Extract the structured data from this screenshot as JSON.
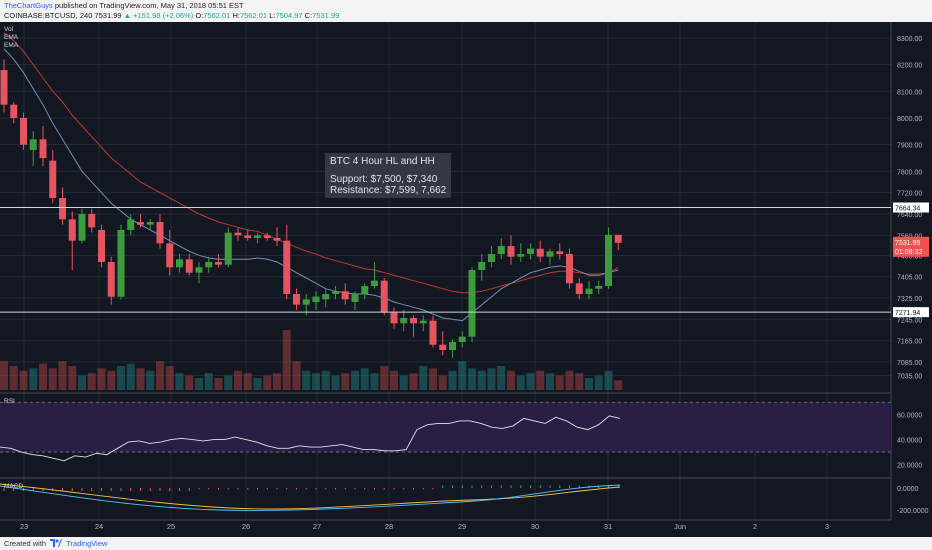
{
  "header": {
    "author": "TheChartGuys",
    "published": "published on TradingView.com, May 31, 2018 05:51 EST",
    "symbol": "COINBASE:BTCUSD, 240",
    "last": "7531.99",
    "change": "▲ +151.98 (+2.06%)",
    "open_label": "O:",
    "open": "7562.01",
    "high_label": "H:",
    "high": "7562.01",
    "low_label": "L:",
    "low": "7504.97",
    "close_label": "C:",
    "close": "7531.99"
  },
  "indicator_labels": [
    "Vol",
    "EMA",
    "EMA"
  ],
  "annotation": {
    "title": "BTC 4 Hour HL and HH",
    "support": "Support: $7,500, $7,340",
    "resistance": "Resistance: $7,599, 7,662"
  },
  "levels": [
    {
      "value": 7664.34,
      "label": "7664.34"
    },
    {
      "value": 7271.94,
      "label": "7271.94"
    }
  ],
  "price_tag": {
    "value": 7531.99,
    "label": "7531.99",
    "countdown": "01:08:32"
  },
  "price_axis": {
    "min": 6980,
    "max": 8360,
    "ticks": [
      "8300.00",
      "8200.00",
      "8100.00",
      "8000.00",
      "7900.00",
      "7800.00",
      "7720.00",
      "7640.00",
      "7560.00",
      "7485.00",
      "7405.00",
      "7325.00",
      "7245.00",
      "7165.00",
      "7085.00",
      "7035.00"
    ]
  },
  "rsi": {
    "label": "RSI",
    "ticks": [
      "60.0000",
      "40.0000",
      "20.0000"
    ],
    "band": [
      30,
      70
    ],
    "values": [
      34,
      33,
      30,
      28,
      27,
      25,
      23,
      27,
      26,
      29,
      28,
      33,
      38,
      39,
      37,
      38,
      40,
      41,
      40,
      39,
      40,
      40,
      42,
      40,
      38,
      35,
      33,
      33,
      35,
      34,
      34,
      35,
      36,
      34,
      32,
      32,
      31,
      31,
      32,
      48,
      52,
      53,
      53,
      55,
      55,
      53,
      50,
      49,
      51,
      57,
      55,
      53,
      58,
      55,
      50,
      48,
      52,
      59,
      57
    ]
  },
  "macd": {
    "label": "MACD",
    "ticks": [
      "0.0000",
      "-200.0000"
    ]
  },
  "time_axis": {
    "labels": [
      "23",
      "24",
      "25",
      "26",
      "27",
      "28",
      "29",
      "30",
      "31",
      "Jun",
      "2",
      "3"
    ]
  },
  "chart_data": {
    "type": "candlestick",
    "symbol": "COINBASE:BTCUSD",
    "interval": "240",
    "candles": [
      {
        "o": 8180,
        "h": 8220,
        "l": 8020,
        "c": 8050
      },
      {
        "o": 8050,
        "h": 8060,
        "l": 7980,
        "c": 8000
      },
      {
        "o": 8000,
        "h": 8020,
        "l": 7880,
        "c": 7900
      },
      {
        "o": 7880,
        "h": 7950,
        "l": 7820,
        "c": 7920
      },
      {
        "o": 7920,
        "h": 7970,
        "l": 7820,
        "c": 7850
      },
      {
        "o": 7840,
        "h": 7880,
        "l": 7680,
        "c": 7700
      },
      {
        "o": 7700,
        "h": 7740,
        "l": 7600,
        "c": 7620
      },
      {
        "o": 7620,
        "h": 7650,
        "l": 7430,
        "c": 7540
      },
      {
        "o": 7540,
        "h": 7660,
        "l": 7530,
        "c": 7640
      },
      {
        "o": 7640,
        "h": 7660,
        "l": 7570,
        "c": 7590
      },
      {
        "o": 7580,
        "h": 7600,
        "l": 7440,
        "c": 7460
      },
      {
        "o": 7460,
        "h": 7480,
        "l": 7300,
        "c": 7330
      },
      {
        "o": 7330,
        "h": 7600,
        "l": 7320,
        "c": 7580
      },
      {
        "o": 7580,
        "h": 7640,
        "l": 7560,
        "c": 7620
      },
      {
        "o": 7610,
        "h": 7640,
        "l": 7590,
        "c": 7600
      },
      {
        "o": 7600,
        "h": 7620,
        "l": 7580,
        "c": 7610
      },
      {
        "o": 7610,
        "h": 7640,
        "l": 7510,
        "c": 7530
      },
      {
        "o": 7530,
        "h": 7580,
        "l": 7410,
        "c": 7440
      },
      {
        "o": 7440,
        "h": 7490,
        "l": 7420,
        "c": 7470
      },
      {
        "o": 7470,
        "h": 7490,
        "l": 7410,
        "c": 7420
      },
      {
        "o": 7420,
        "h": 7460,
        "l": 7380,
        "c": 7440
      },
      {
        "o": 7440,
        "h": 7480,
        "l": 7420,
        "c": 7460
      },
      {
        "o": 7460,
        "h": 7490,
        "l": 7440,
        "c": 7450
      },
      {
        "o": 7450,
        "h": 7590,
        "l": 7440,
        "c": 7570
      },
      {
        "o": 7570,
        "h": 7590,
        "l": 7540,
        "c": 7560
      },
      {
        "o": 7560,
        "h": 7580,
        "l": 7540,
        "c": 7550
      },
      {
        "o": 7550,
        "h": 7570,
        "l": 7530,
        "c": 7560
      },
      {
        "o": 7560,
        "h": 7570,
        "l": 7540,
        "c": 7550
      },
      {
        "o": 7550,
        "h": 7590,
        "l": 7520,
        "c": 7540
      },
      {
        "o": 7540,
        "h": 7600,
        "l": 7320,
        "c": 7340
      },
      {
        "o": 7340,
        "h": 7360,
        "l": 7280,
        "c": 7300
      },
      {
        "o": 7300,
        "h": 7340,
        "l": 7260,
        "c": 7320
      },
      {
        "o": 7310,
        "h": 7350,
        "l": 7280,
        "c": 7330
      },
      {
        "o": 7320,
        "h": 7360,
        "l": 7290,
        "c": 7340
      },
      {
        "o": 7340,
        "h": 7370,
        "l": 7320,
        "c": 7350
      },
      {
        "o": 7350,
        "h": 7380,
        "l": 7300,
        "c": 7320
      },
      {
        "o": 7310,
        "h": 7350,
        "l": 7280,
        "c": 7340
      },
      {
        "o": 7340,
        "h": 7380,
        "l": 7320,
        "c": 7370
      },
      {
        "o": 7370,
        "h": 7460,
        "l": 7360,
        "c": 7390
      },
      {
        "o": 7390,
        "h": 7400,
        "l": 7260,
        "c": 7270
      },
      {
        "o": 7270,
        "h": 7290,
        "l": 7210,
        "c": 7230
      },
      {
        "o": 7230,
        "h": 7280,
        "l": 7200,
        "c": 7250
      },
      {
        "o": 7250,
        "h": 7260,
        "l": 7180,
        "c": 7230
      },
      {
        "o": 7230,
        "h": 7260,
        "l": 7200,
        "c": 7240
      },
      {
        "o": 7240,
        "h": 7260,
        "l": 7140,
        "c": 7150
      },
      {
        "o": 7150,
        "h": 7200,
        "l": 7110,
        "c": 7130
      },
      {
        "o": 7130,
        "h": 7170,
        "l": 7100,
        "c": 7160
      },
      {
        "o": 7160,
        "h": 7200,
        "l": 7140,
        "c": 7180
      },
      {
        "o": 7180,
        "h": 7440,
        "l": 7160,
        "c": 7430
      },
      {
        "o": 7430,
        "h": 7490,
        "l": 7390,
        "c": 7460
      },
      {
        "o": 7460,
        "h": 7520,
        "l": 7440,
        "c": 7490
      },
      {
        "o": 7490,
        "h": 7550,
        "l": 7470,
        "c": 7520
      },
      {
        "o": 7520,
        "h": 7560,
        "l": 7450,
        "c": 7480
      },
      {
        "o": 7480,
        "h": 7530,
        "l": 7460,
        "c": 7490
      },
      {
        "o": 7490,
        "h": 7530,
        "l": 7470,
        "c": 7510
      },
      {
        "o": 7510,
        "h": 7540,
        "l": 7460,
        "c": 7480
      },
      {
        "o": 7480,
        "h": 7510,
        "l": 7450,
        "c": 7500
      },
      {
        "o": 7500,
        "h": 7530,
        "l": 7470,
        "c": 7490
      },
      {
        "o": 7490,
        "h": 7510,
        "l": 7360,
        "c": 7380
      },
      {
        "o": 7380,
        "h": 7400,
        "l": 7320,
        "c": 7340
      },
      {
        "o": 7340,
        "h": 7390,
        "l": 7320,
        "c": 7360
      },
      {
        "o": 7360,
        "h": 7390,
        "l": 7340,
        "c": 7370
      },
      {
        "o": 7370,
        "h": 7590,
        "l": 7360,
        "c": 7562
      },
      {
        "o": 7562,
        "h": 7562,
        "l": 7505,
        "c": 7532
      }
    ],
    "volume": [
      12,
      10,
      8,
      9,
      11,
      9,
      12,
      10,
      6,
      7,
      9,
      8,
      10,
      11,
      9,
      8,
      12,
      10,
      7,
      6,
      5,
      7,
      5,
      6,
      8,
      7,
      5,
      6,
      7,
      25,
      12,
      8,
      7,
      8,
      6,
      7,
      8,
      9,
      7,
      10,
      8,
      6,
      7,
      10,
      9,
      6,
      8,
      12,
      9,
      8,
      9,
      10,
      8,
      6,
      7,
      8,
      7,
      6,
      8,
      7,
      5,
      6,
      8,
      4
    ],
    "ema_fast": [
      8260,
      8220,
      8170,
      8110,
      8050,
      7980,
      7920,
      7860,
      7800,
      7760,
      7720,
      7680,
      7650,
      7620,
      7600,
      7580,
      7560,
      7540,
      7520,
      7500,
      7485,
      7475,
      7470,
      7470,
      7470,
      7470,
      7475,
      7470,
      7460,
      7440,
      7420,
      7400,
      7380,
      7360,
      7350,
      7345,
      7340,
      7340,
      7335,
      7325,
      7310,
      7300,
      7290,
      7280,
      7265,
      7250,
      7245,
      7240,
      7270,
      7300,
      7330,
      7360,
      7380,
      7400,
      7420,
      7430,
      7440,
      7445,
      7440,
      7425,
      7410,
      7410,
      7420,
      7430
    ],
    "ema_slow": [
      8320,
      8290,
      8250,
      8200,
      8150,
      8100,
      8060,
      8010,
      7970,
      7930,
      7890,
      7850,
      7820,
      7790,
      7760,
      7740,
      7720,
      7700,
      7680,
      7660,
      7640,
      7625,
      7610,
      7600,
      7590,
      7580,
      7575,
      7560,
      7545,
      7530,
      7515,
      7500,
      7490,
      7475,
      7465,
      7455,
      7445,
      7435,
      7430,
      7420,
      7410,
      7400,
      7390,
      7380,
      7370,
      7360,
      7350,
      7345,
      7345,
      7350,
      7360,
      7370,
      7380,
      7390,
      7400,
      7410,
      7420,
      7425,
      7425,
      7420,
      7415,
      7415,
      7420,
      7440
    ],
    "x_labels": [
      "23",
      "24",
      "25",
      "26",
      "27",
      "28",
      "29",
      "30",
      "31",
      "Jun",
      "2",
      "3"
    ]
  },
  "footer": {
    "created": "Created with",
    "brand": "TradingView"
  },
  "colors": {
    "up": "#26a69a",
    "down": "#ef5350",
    "up_body": "#3c9b3c",
    "down_body": "#e6545f",
    "bg": "#131722",
    "grid": "#252a36",
    "ema_fast": "#6e8fb8",
    "ema_slow": "#c0392b",
    "rsi_bg": "#2a1e45"
  }
}
